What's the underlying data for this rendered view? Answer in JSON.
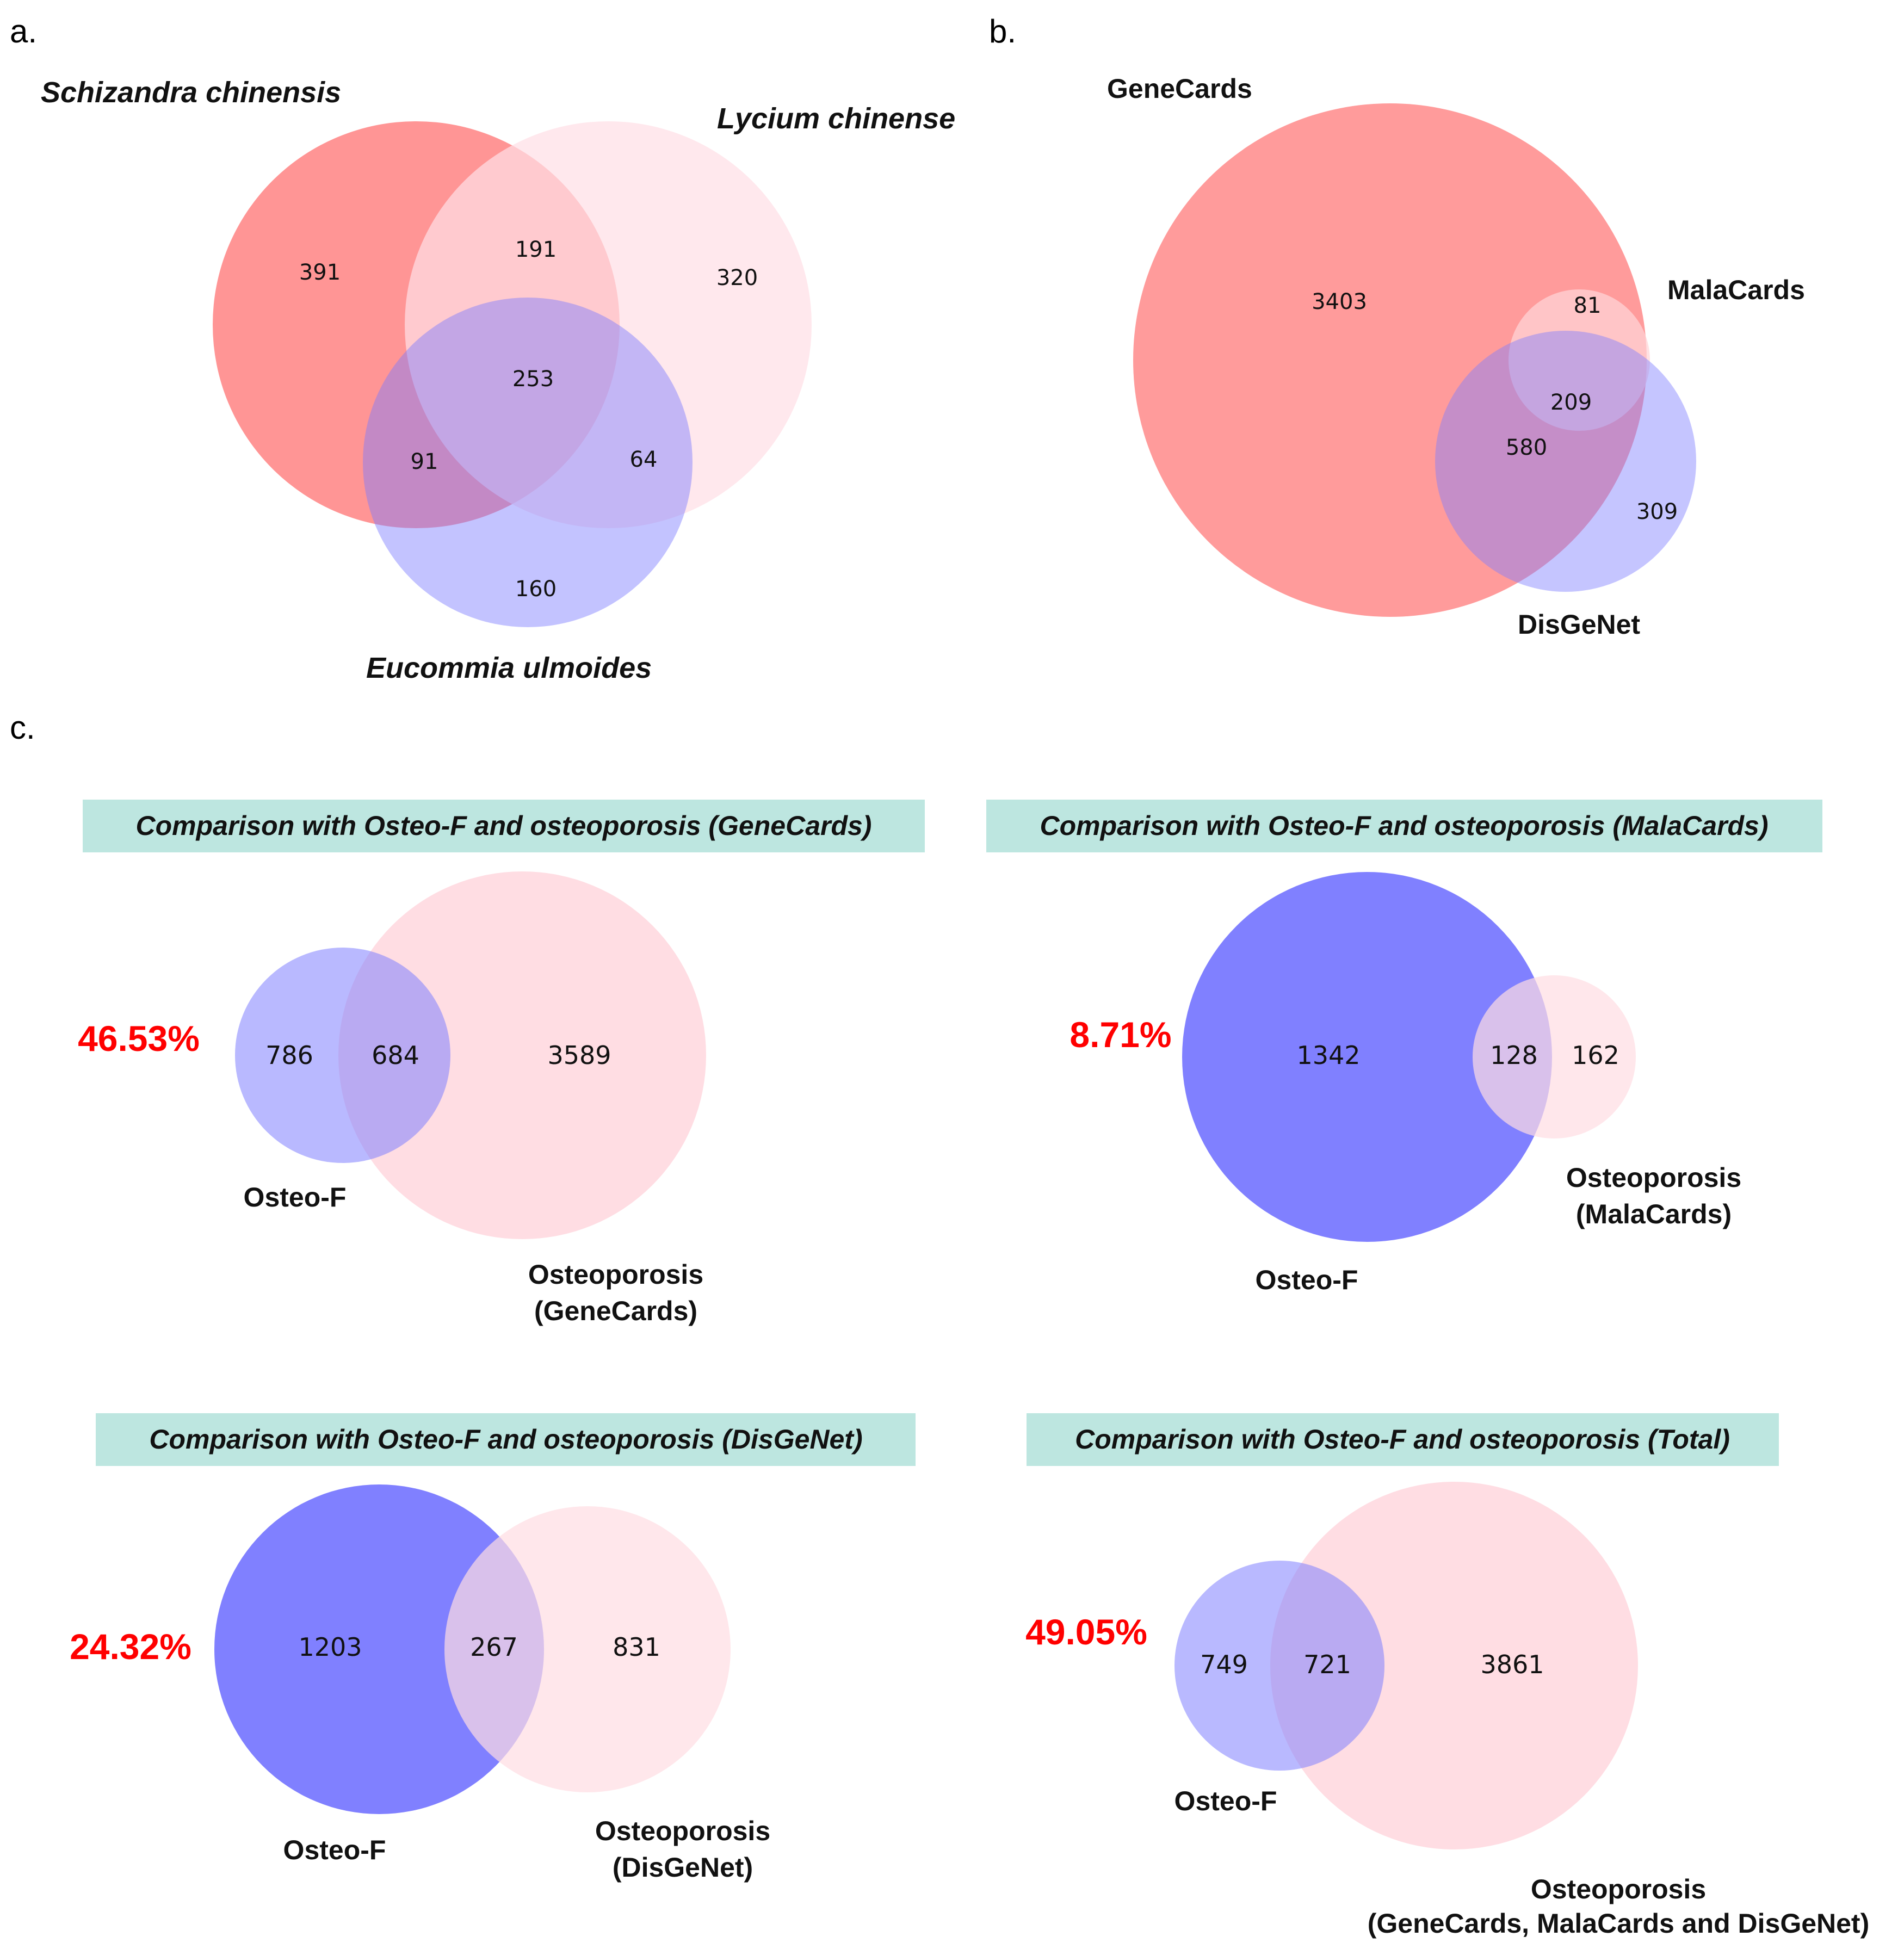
{
  "panels": {
    "a": {
      "letter": "a.",
      "sets": {
        "schizandra": "Schizandra chinensis",
        "lycium": "Lycium chinense",
        "eucommia": "Eucommia ulmoides"
      },
      "counts": {
        "schizandra_only": "391",
        "schizandra_lycium": "191",
        "lycium_only": "320",
        "all_three": "253",
        "schizandra_eucommia": "91",
        "lycium_eucommia": "64",
        "eucommia_only": "160"
      },
      "colors": {
        "schizandra": "#ff9595",
        "lycium": "#ffdfe6",
        "eucommia": "#8b8bff"
      }
    },
    "b": {
      "letter": "b.",
      "sets": {
        "genecards": "GeneCards",
        "malacards": "MalaCards",
        "disgenet": "DisGeNet"
      },
      "counts": {
        "genecards_only": "3403",
        "malacards_only": "81",
        "all_three": "209",
        "genecards_disgenet": "580",
        "disgenet_only": "309"
      },
      "colors": {
        "genecards": "#ff9b9b",
        "malacards": "#ffd6d8",
        "disgenet": "#9898ff"
      }
    },
    "c": {
      "letter": "c.",
      "genecards": {
        "title": "Comparison with Osteo-F and osteoporosis (GeneCards)",
        "percent": "46.53%",
        "left_label": "Osteo-F",
        "right_label_line1": "Osteoporosis",
        "right_label_line2": "(GeneCards)",
        "left_only": "786",
        "overlap": "684",
        "right_only": "3589"
      },
      "malacards": {
        "title": "Comparison with Osteo-F and osteoporosis (MalaCards)",
        "percent": "8.71%",
        "left_label": "Osteo-F",
        "right_label_line1": "Osteoporosis",
        "right_label_line2": "(MalaCards)",
        "left_only": "1342",
        "overlap": "128",
        "right_only": "162"
      },
      "disgenet": {
        "title": "Comparison with Osteo-F and osteoporosis (DisGeNet)",
        "percent": "24.32%",
        "left_label": "Osteo-F",
        "right_label_line1": "Osteoporosis",
        "right_label_line2": "(DisGeNet)",
        "left_only": "1203",
        "overlap": "267",
        "right_only": "831"
      },
      "total": {
        "title": "Comparison with Osteo-F and osteoporosis (Total)",
        "percent": "49.05%",
        "left_label": "Osteo-F",
        "right_label_line1": "Osteoporosis",
        "right_label_line2": "(GeneCards, MalaCards and DisGeNet)",
        "left_only": "749",
        "overlap": "721",
        "right_only": "3861"
      },
      "colors": {
        "osteo_f": "#8080ff",
        "osteoporosis": "#ffdde3",
        "banner": "#bde6e0",
        "percent": "#ff0000"
      }
    }
  }
}
